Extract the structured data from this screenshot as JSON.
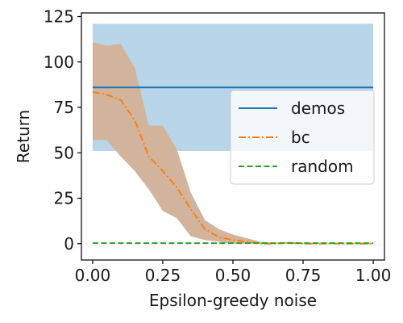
{
  "chart_data": {
    "type": "line",
    "title": "",
    "xlabel": "Epsilon-greedy noise",
    "ylabel": "Return",
    "xlim": [
      -0.04,
      1.04
    ],
    "ylim": [
      -9,
      127
    ],
    "xticks": [
      0.0,
      0.25,
      0.5,
      0.75,
      1.0
    ],
    "xtick_labels": [
      "0.00",
      "0.25",
      "0.50",
      "0.75",
      "1.00"
    ],
    "yticks": [
      0,
      25,
      50,
      75,
      100,
      125
    ],
    "ytick_labels": [
      "0",
      "25",
      "50",
      "75",
      "100",
      "125"
    ],
    "grid": false,
    "legend_position": "right",
    "series": [
      {
        "name": "demos",
        "color": "#1f77b4",
        "line_style": "solid",
        "band_color": "#b9d5ea",
        "x": [
          0.0,
          1.0
        ],
        "y": [
          86,
          86
        ],
        "band_low": [
          51,
          51
        ],
        "band_high": [
          121,
          121
        ]
      },
      {
        "name": "bc",
        "color": "#ff7f0e",
        "line_style": "dashdot",
        "band_color": "#d2b49c",
        "x": [
          0.0,
          0.05,
          0.1,
          0.15,
          0.2,
          0.25,
          0.3,
          0.35,
          0.4,
          0.45,
          0.5,
          0.55,
          0.6,
          0.65,
          0.7,
          0.75,
          0.8,
          0.85,
          0.9,
          0.95,
          1.0
        ],
        "y": [
          83.5,
          82,
          79,
          68,
          48,
          40,
          31,
          19,
          8,
          3.5,
          2,
          1,
          0,
          0,
          0.5,
          0,
          0,
          0,
          0,
          0,
          0
        ],
        "band_low": [
          57,
          57,
          48,
          40,
          30,
          18,
          14,
          4,
          2,
          1,
          0,
          0,
          0,
          0,
          0,
          0,
          0,
          0,
          0,
          0,
          0
        ],
        "band_high": [
          111,
          109,
          110,
          97,
          65,
          65,
          52,
          28,
          13,
          8,
          5,
          3,
          1,
          0.5,
          1,
          0.5,
          0.5,
          0.5,
          0.5,
          0.5,
          0.5
        ]
      },
      {
        "name": "random",
        "color": "#2ca02c",
        "line_style": "dashed",
        "x": [
          0.0,
          1.0
        ],
        "y": [
          0.3,
          0.3
        ]
      }
    ]
  }
}
